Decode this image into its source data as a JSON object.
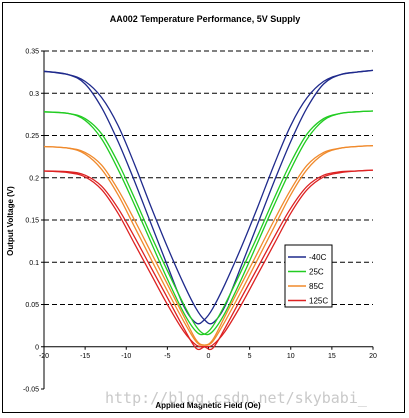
{
  "chart_data": {
    "type": "line",
    "title": "AA002 Temperature Performance, 5V Supply",
    "xlabel": "Applied Magnetic Field (Oe)",
    "ylabel": "Output Voltage (V)",
    "xlim": [
      -20,
      20
    ],
    "ylim": [
      -0.05,
      0.35
    ],
    "x_ticks": [
      "-20",
      "-15",
      "-10",
      "-5",
      "0",
      "5",
      "10",
      "15",
      "20"
    ],
    "y_ticks": [
      "-0.05",
      "0",
      "0.05",
      "0.1",
      "0.15",
      "0.2",
      "0.25",
      "0.3",
      "0.35"
    ],
    "grid": "horizontal dashed",
    "legend_position": "lower-right",
    "series": [
      {
        "name": "-40C",
        "color": "#1f2a8c",
        "x": [
          -20,
          -17,
          -15,
          -13,
          -11,
          -9,
          -7,
          -5,
          -3,
          -1.5,
          -0.5,
          0.5,
          2,
          4,
          6,
          8,
          10,
          12,
          14,
          16,
          18,
          20
        ],
        "down": [
          0.326,
          0.322,
          0.314,
          0.295,
          0.262,
          0.216,
          0.166,
          0.118,
          0.074,
          0.045,
          0.032,
          0.028,
          0.048,
          0.096,
          0.146,
          0.196,
          0.243,
          0.283,
          0.311,
          0.322,
          0.325,
          0.327
        ],
        "up": [
          0.326,
          0.322,
          0.311,
          0.283,
          0.243,
          0.196,
          0.146,
          0.096,
          0.048,
          0.028,
          0.032,
          0.045,
          0.074,
          0.118,
          0.166,
          0.216,
          0.262,
          0.295,
          0.314,
          0.322,
          0.325,
          0.327
        ]
      },
      {
        "name": "25C",
        "color": "#22cc22",
        "x": [
          -20,
          -17,
          -15,
          -13,
          -11,
          -9,
          -7,
          -5,
          -3,
          -1.5,
          -0.5,
          0.5,
          2,
          4,
          6,
          8,
          10,
          12,
          14,
          16,
          18,
          20
        ],
        "down": [
          0.278,
          0.276,
          0.27,
          0.252,
          0.218,
          0.176,
          0.132,
          0.09,
          0.05,
          0.024,
          0.015,
          0.018,
          0.04,
          0.08,
          0.124,
          0.168,
          0.21,
          0.246,
          0.268,
          0.276,
          0.278,
          0.279
        ],
        "up": [
          0.278,
          0.276,
          0.268,
          0.246,
          0.21,
          0.168,
          0.124,
          0.08,
          0.04,
          0.018,
          0.015,
          0.024,
          0.05,
          0.09,
          0.132,
          0.176,
          0.218,
          0.252,
          0.27,
          0.276,
          0.278,
          0.279
        ]
      },
      {
        "name": "85C",
        "color": "#f08a2c",
        "x": [
          -20,
          -17,
          -15,
          -13,
          -11,
          -9,
          -7,
          -5,
          -3,
          -1.5,
          -0.5,
          0.5,
          2,
          4,
          6,
          8,
          10,
          12,
          14,
          16,
          18,
          20
        ],
        "down": [
          0.237,
          0.235,
          0.23,
          0.215,
          0.186,
          0.15,
          0.112,
          0.074,
          0.036,
          0.008,
          0.002,
          0.006,
          0.03,
          0.066,
          0.104,
          0.142,
          0.18,
          0.21,
          0.228,
          0.235,
          0.237,
          0.238
        ],
        "up": [
          0.237,
          0.235,
          0.228,
          0.21,
          0.18,
          0.142,
          0.104,
          0.066,
          0.03,
          0.006,
          0.002,
          0.008,
          0.036,
          0.074,
          0.112,
          0.15,
          0.186,
          0.215,
          0.23,
          0.235,
          0.237,
          0.238
        ]
      },
      {
        "name": "125C",
        "color": "#dd2222",
        "x": [
          -20,
          -17,
          -15,
          -13,
          -11,
          -9,
          -7,
          -5,
          -3,
          -1.5,
          -0.5,
          0.5,
          2,
          4,
          6,
          8,
          10,
          12,
          14,
          16,
          18,
          20
        ],
        "down": [
          0.208,
          0.207,
          0.203,
          0.19,
          0.164,
          0.13,
          0.094,
          0.058,
          0.022,
          -0.002,
          0.0,
          0.002,
          0.018,
          0.05,
          0.086,
          0.122,
          0.158,
          0.186,
          0.201,
          0.206,
          0.208,
          0.209
        ],
        "up": [
          0.208,
          0.206,
          0.201,
          0.186,
          0.158,
          0.122,
          0.086,
          0.05,
          0.018,
          0.002,
          0.0,
          -0.002,
          0.022,
          0.058,
          0.094,
          0.13,
          0.164,
          0.19,
          0.203,
          0.207,
          0.208,
          0.209
        ]
      }
    ]
  },
  "watermark": "http://blog.csdn.net/skybabi_"
}
